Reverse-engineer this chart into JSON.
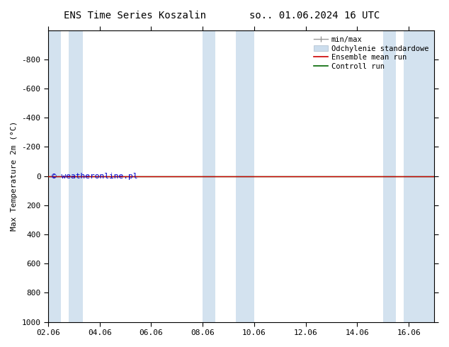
{
  "title_left": "ENS Time Series Koszalin",
  "title_right": "so.. 01.06.2024 16 UTC",
  "ylabel": "Max Temperature 2m (°C)",
  "xticklabels": [
    "02.06",
    "04.06",
    "06.06",
    "08.06",
    "10.06",
    "12.06",
    "14.06",
    "16.06"
  ],
  "xtick_positions": [
    0,
    2,
    4,
    6,
    8,
    10,
    12,
    14
  ],
  "ylim_top": -1000,
  "ylim_bottom": 1000,
  "yticks": [
    -800,
    -600,
    -400,
    -200,
    0,
    200,
    400,
    600,
    800,
    1000
  ],
  "xlim": [
    0,
    15
  ],
  "background_color": "#ffffff",
  "plot_bg_color": "#ffffff",
  "shaded_band_color": "#ccdded",
  "shaded_columns_x": [
    [
      0.0,
      1.3
    ],
    [
      1.5,
      2.0
    ],
    [
      6.0,
      7.0
    ],
    [
      7.5,
      9.5
    ],
    [
      13.5,
      14.5
    ],
    [
      15.0,
      15.0
    ]
  ],
  "ensemble_mean_color": "#cc0000",
  "control_run_color": "#006600",
  "zero_line_y": 0,
  "watermark": "© weatheronline.pl",
  "watermark_color": "#0000cc",
  "watermark_fontsize": 8,
  "legend_labels": [
    "min/max",
    "Odchylenie standardowe",
    "Ensemble mean run",
    "Controll run"
  ],
  "legend_colors_line": [
    "#999999",
    "#aabbcc",
    "#cc0000",
    "#006600"
  ],
  "title_fontsize": 10,
  "axis_label_fontsize": 8,
  "tick_fontsize": 8,
  "legend_fontsize": 7.5
}
